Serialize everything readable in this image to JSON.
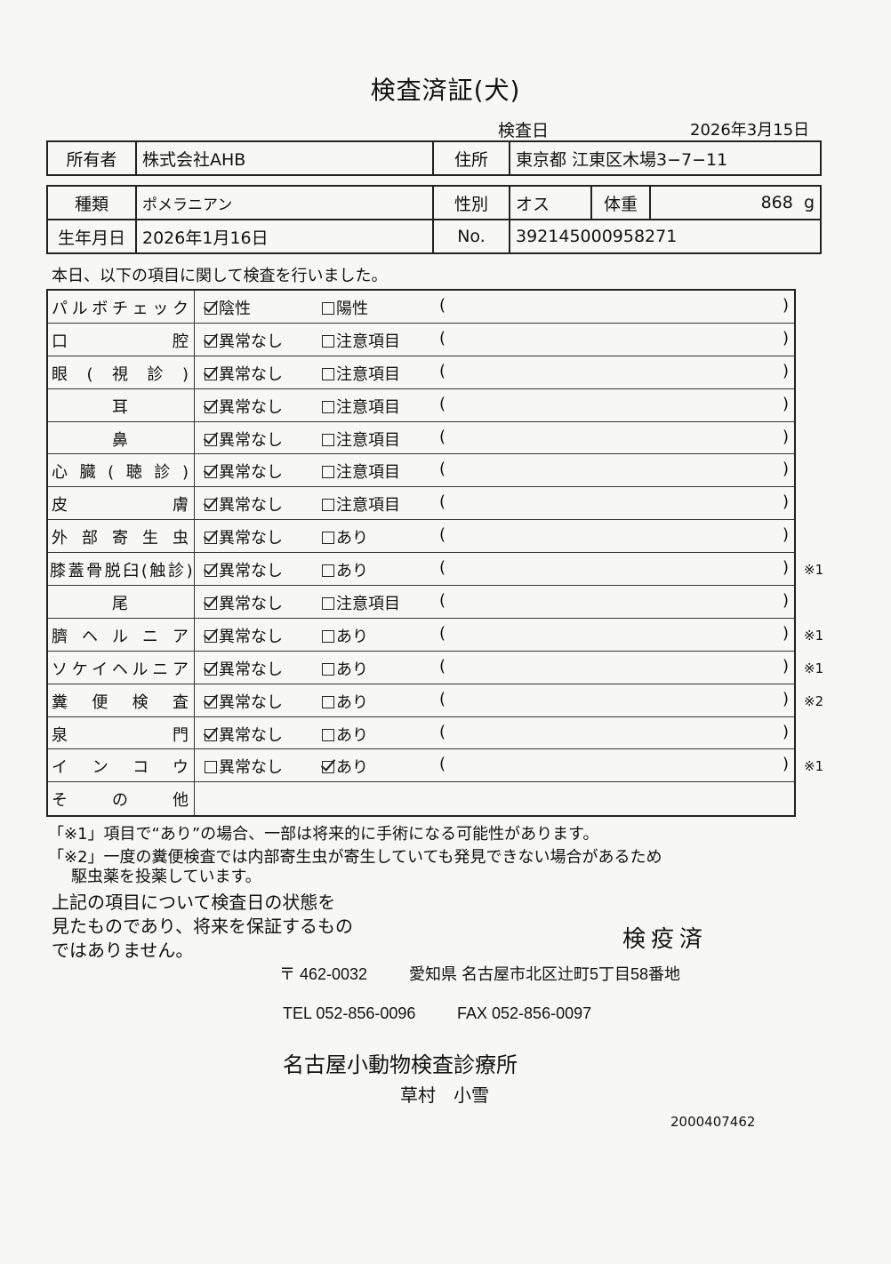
{
  "title": "検査済証(犬)",
  "inspection_date_label": "検査日",
  "inspection_date": "2026年3月15日",
  "owner": {
    "label": "所有者",
    "value": "株式会社AHB",
    "address_label": "住所",
    "address": "東京都 江東区木場3−7−11"
  },
  "animal": {
    "breed_label": "種類",
    "breed": "ポメラニアン",
    "sex_label": "性別",
    "sex": "オス",
    "weight_label": "体重",
    "weight": "868",
    "weight_unit": "g",
    "birth_label": "生年月日",
    "birth": "2026年1月16日",
    "no_label": "No.",
    "no": "392145000958271"
  },
  "intro": "本日、以下の項目に関して検査を行いました。",
  "checks": [
    {
      "label": "パルボチェック",
      "opt1": "陰性",
      "opt2": "陽性",
      "checked": 1,
      "note": ""
    },
    {
      "label": "口腔",
      "opt1": "異常なし",
      "opt2": "注意項目",
      "checked": 1,
      "note": ""
    },
    {
      "label": "眼(視診)",
      "opt1": "異常なし",
      "opt2": "注意項目",
      "checked": 1,
      "note": ""
    },
    {
      "label": "耳",
      "opt1": "異常なし",
      "opt2": "注意項目",
      "checked": 1,
      "note": ""
    },
    {
      "label": "鼻",
      "opt1": "異常なし",
      "opt2": "注意項目",
      "checked": 1,
      "note": ""
    },
    {
      "label": "心臓(聴診)",
      "opt1": "異常なし",
      "opt2": "注意項目",
      "checked": 1,
      "note": ""
    },
    {
      "label": "皮膚",
      "opt1": "異常なし",
      "opt2": "注意項目",
      "checked": 1,
      "note": ""
    },
    {
      "label": "外部寄生虫",
      "opt1": "異常なし",
      "opt2": "あり",
      "checked": 1,
      "note": ""
    },
    {
      "label": "膝蓋骨脱臼(触診)",
      "opt1": "異常なし",
      "opt2": "あり",
      "checked": 1,
      "note": "※1"
    },
    {
      "label": "尾",
      "opt1": "異常なし",
      "opt2": "注意項目",
      "checked": 1,
      "note": ""
    },
    {
      "label": "臍ヘルニア",
      "opt1": "異常なし",
      "opt2": "あり",
      "checked": 1,
      "note": "※1"
    },
    {
      "label": "ソケイヘルニア",
      "opt1": "異常なし",
      "opt2": "あり",
      "checked": 1,
      "note": "※1"
    },
    {
      "label": "糞便検査",
      "opt1": "異常なし",
      "opt2": "あり",
      "checked": 1,
      "note": "※2"
    },
    {
      "label": "泉門",
      "opt1": "異常なし",
      "opt2": "あり",
      "checked": 1,
      "note": ""
    },
    {
      "label": "インコウ",
      "opt1": "異常なし",
      "opt2": "あり",
      "checked": 2,
      "note": "※1"
    },
    {
      "label": "その他",
      "opt1": "",
      "opt2": "",
      "checked": 0,
      "note": ""
    }
  ],
  "footnotes": {
    "n1": "「※1」項目で“あり”の場合、一部は将来的に手術になる可能性があります。",
    "n2a": "「※2」一度の糞便検査では内部寄生虫が寄生していても発見できない場合があるため",
    "n2b": "駆虫薬を投薬しています。"
  },
  "disclaimer": [
    "上記の項目について検査日の状態を",
    "見たものであり、将来を保証するもの",
    "ではありません。"
  ],
  "stamp": "検疫済",
  "clinic": {
    "postal": "〒 462-0032",
    "address": "愛知県 名古屋市北区辻町5丁目58番地",
    "tel": "TEL 052-856-0096",
    "fax": "FAX 052-856-0097",
    "name": "名古屋小動物検査診療所",
    "vet": "草村　小雪",
    "code": "2000407462"
  }
}
